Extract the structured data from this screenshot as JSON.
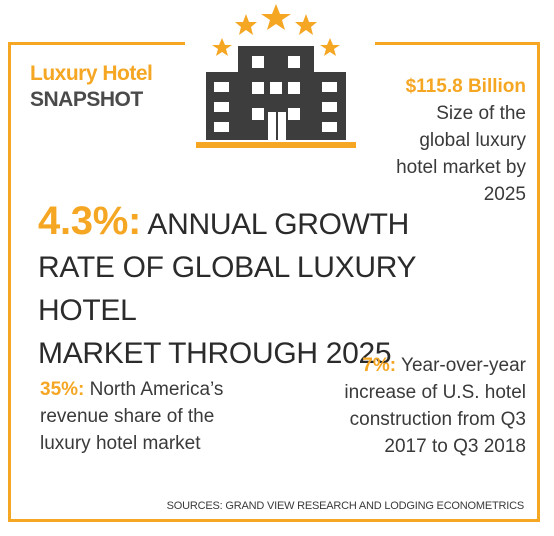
{
  "header": {
    "title_line1": "Luxury Hotel",
    "title_line2": "SNAPSHOT"
  },
  "icon": "hotel-building-with-stars-icon",
  "colors": {
    "accent": "#f5a623",
    "text": "#2b2b2b",
    "building": "#3d3d3d"
  },
  "stat_market_size": {
    "value": "$115.8 Billion",
    "line1": "Size of the",
    "line2": "global luxury",
    "line3": "hotel market by",
    "line4": "2025"
  },
  "headline": {
    "value": "4.3%:",
    "text_line1": " ANNUAL GROWTH",
    "text_line2": "RATE OF GLOBAL LUXURY HOTEL",
    "text_line3": "MARKET THROUGH 2025"
  },
  "stat_share": {
    "value": "35%:",
    "line1": " North America’s",
    "line2": "revenue share of the",
    "line3": "luxury hotel market"
  },
  "stat_construction": {
    "value": "7%:",
    "line1": " Year-over-year",
    "line2": "increase of U.S. hotel",
    "line3": "construction from Q3",
    "line4": "2017 to Q3 2018"
  },
  "sources": "SOURCES: GRAND VIEW RESEARCH AND LODGING ECONOMETRICS"
}
